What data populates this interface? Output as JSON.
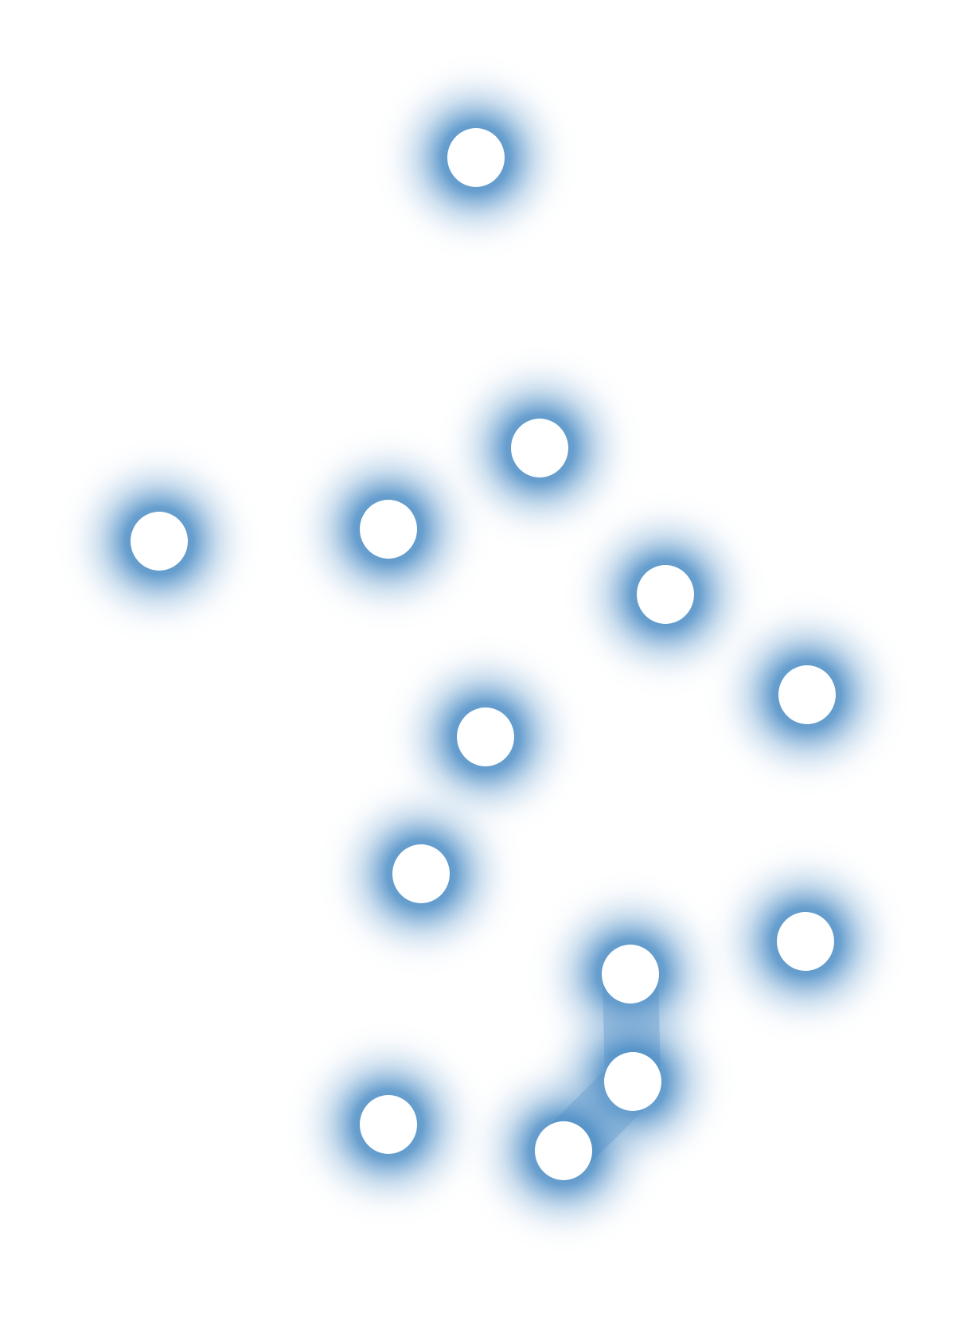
{
  "colors": {
    "background": "#ffffff",
    "glow": "#4f8fc6",
    "dot": "#ffffff"
  },
  "dots": [
    {
      "id": 1
    },
    {
      "id": 2
    },
    {
      "id": 3
    },
    {
      "id": 4
    },
    {
      "id": 5
    },
    {
      "id": 6
    },
    {
      "id": 7
    },
    {
      "id": 8
    },
    {
      "id": 9
    },
    {
      "id": 10
    },
    {
      "id": 11
    },
    {
      "id": 12
    },
    {
      "id": 13
    }
  ]
}
